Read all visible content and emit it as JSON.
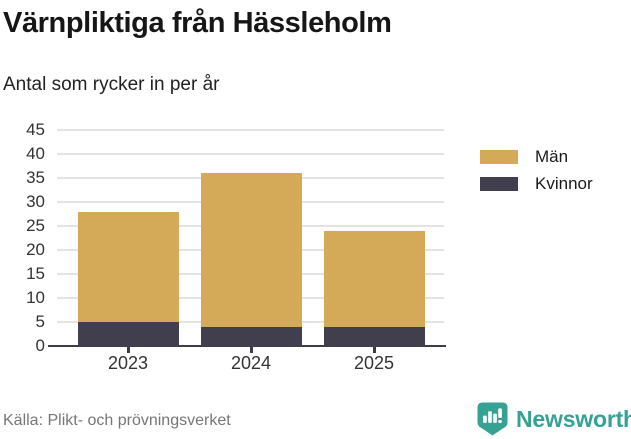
{
  "header": {
    "title": "Värnpliktiga från Hässleholm",
    "subtitle": "Antal som rycker in per år"
  },
  "chart_data": {
    "type": "bar",
    "stacked": true,
    "categories": [
      "2023",
      "2024",
      "2025"
    ],
    "series": [
      {
        "name": "Män",
        "color": "#d4a957",
        "values": [
          23,
          32,
          20
        ]
      },
      {
        "name": "Kvinnor",
        "color": "#413e4e",
        "values": [
          5,
          4,
          4
        ]
      }
    ],
    "stack_order_bottom_to_top": [
      "Kvinnor",
      "Män"
    ],
    "stacked_totals": [
      28,
      36,
      24
    ],
    "xlabel": "",
    "ylabel": "",
    "ylim": [
      0,
      45
    ],
    "ytick_step": 5,
    "grid": true,
    "legend_position": "top-right",
    "colors": {
      "gridline": "#e3e3e3",
      "axis": "#3e3c49",
      "tick_label": "#333333"
    }
  },
  "footer": {
    "source": "Källa: Plikt- och prövningsverket",
    "brand": "Newsworthy",
    "brand_color": "#36a294"
  }
}
